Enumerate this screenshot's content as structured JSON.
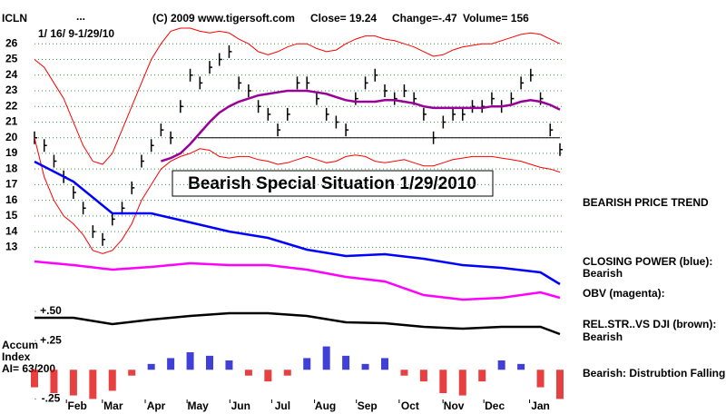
{
  "header": {
    "symbol": "ICLN",
    "dots": "...",
    "copyright": "(C) 2009 www.tigersoft.com",
    "close": "Close= 19.24",
    "change": "Change=-.47",
    "volume": "Volume= 156",
    "date_range": "1/ 16/ 9-1/29/10"
  },
  "chart_data": [
    {
      "type": "line",
      "annotation": "Bearish Special Situation 1/29/2010",
      "trend_label": "BEARISH PRICE TREND",
      "xlim": [
        0,
        54
      ],
      "xticks": [
        {
          "value": 4.4,
          "label": "Feb"
        },
        {
          "value": 8.1,
          "label": "Mar"
        },
        {
          "value": 12.5,
          "label": "Apr"
        },
        {
          "value": 16.8,
          "label": "May"
        },
        {
          "value": 21.2,
          "label": "Jun"
        },
        {
          "value": 25.5,
          "label": "Jul"
        },
        {
          "value": 29.9,
          "label": "Aug"
        },
        {
          "value": 34.2,
          "label": "Sep"
        },
        {
          "value": 38.6,
          "label": "Oct"
        },
        {
          "value": 43.1,
          "label": "Nov"
        },
        {
          "value": 47.3,
          "label": "Dec"
        },
        {
          "value": 52,
          "label": "Jan"
        }
      ],
      "ylim": [
        12.5,
        27
      ],
      "yticks": [
        13,
        14,
        15,
        16,
        17,
        18,
        19,
        20,
        21,
        22,
        23,
        24,
        25,
        26
      ],
      "grid": true,
      "support": 20,
      "series": [
        {
          "role": "price",
          "color": "#000000",
          "values": [
            20,
            19.5,
            18.5,
            17.5,
            16.5,
            15.5,
            14,
            13.5,
            14.8,
            15.5,
            16.8,
            18.5,
            19.5,
            20.5,
            20,
            22,
            24,
            23.5,
            24.5,
            25,
            25.5,
            23.5,
            23,
            22,
            21.5,
            20.5,
            21.5,
            23.5,
            23.5,
            22.5,
            21.5,
            21,
            20.5,
            22.5,
            23.5,
            24,
            23,
            22.5,
            23,
            22.5,
            21.5,
            20,
            21,
            21.5,
            21.5,
            22,
            22,
            22.5,
            22,
            22.5,
            23.5,
            24,
            22.5,
            20.5,
            19.24
          ]
        },
        {
          "role": "average",
          "color": "#990099",
          "values": [
            null,
            null,
            null,
            null,
            null,
            null,
            null,
            null,
            null,
            null,
            null,
            null,
            null,
            18.5,
            18.7,
            19,
            19.6,
            20.3,
            21,
            21.6,
            22,
            22.3,
            22.5,
            22.7,
            22.8,
            22.9,
            23,
            23,
            23,
            22.9,
            22.8,
            22.6,
            22.4,
            22.3,
            22.3,
            22.3,
            22.4,
            22.4,
            22.3,
            22.2,
            22,
            21.9,
            21.9,
            21.9,
            21.9,
            21.9,
            21.9,
            22,
            22,
            22.1,
            22.3,
            22.4,
            22.3,
            22.1,
            21.8
          ]
        },
        {
          "role": "band",
          "color": "#ff0000",
          "values": [
            25,
            24.5,
            23.5,
            22.5,
            21,
            19.5,
            18.5,
            18.3,
            19,
            20.5,
            22,
            23.5,
            25,
            26,
            26.8,
            27,
            27,
            26.8,
            26.7,
            26.8,
            26.7,
            26.3,
            26,
            25.5,
            25.3,
            25.5,
            25.8,
            26,
            26,
            25.7,
            25.5,
            25.6,
            26,
            26.3,
            26.5,
            26.5,
            26.3,
            26.2,
            26,
            25.8,
            25.5,
            25.2,
            25.3,
            25.6,
            25.8,
            25.9,
            26,
            26,
            26.2,
            26.4,
            26.6,
            26.7,
            26.6,
            26.3,
            26
          ]
        },
        {
          "role": "band",
          "color": "#ff0000",
          "values": [
            20,
            17.5,
            16,
            15,
            14.5,
            13.8,
            12.8,
            12.6,
            12.8,
            13.5,
            14.5,
            16,
            17,
            18,
            18.5,
            18.8,
            19,
            19.3,
            19.2,
            18.8,
            18.7,
            18.8,
            18.8,
            18.6,
            18.5,
            18.3,
            18.4,
            18.6,
            18.8,
            18.6,
            18.4,
            18.5,
            18.8,
            18.9,
            18.8,
            18.5,
            18.4,
            18.5,
            18.6,
            18.4,
            18.2,
            18.2,
            18.4,
            18.6,
            18.7,
            18.8,
            18.8,
            18.8,
            18.7,
            18.6,
            18.5,
            18.3,
            18.1,
            18,
            17.8
          ]
        }
      ]
    },
    {
      "type": "line",
      "xlim": [
        0,
        54
      ],
      "ylim": [
        0,
        100
      ],
      "x": [
        0,
        4,
        8,
        12,
        16,
        20,
        24,
        28,
        32,
        36,
        40,
        44,
        48,
        52,
        54
      ],
      "series": [
        {
          "name": "CLOSING POWER (blue):",
          "status": "Bearish",
          "color": "#0000ff",
          "values": [
            96,
            85,
            67.5,
            67.5,
            62.5,
            57.5,
            54,
            47.5,
            44,
            45,
            42.5,
            39,
            37.5,
            35,
            28.5
          ]
        },
        {
          "name": "OBV (magenta):",
          "color": "#ff00ff",
          "values": [
            41,
            39,
            36.5,
            38,
            40,
            39,
            39,
            36.5,
            32.5,
            30,
            22.5,
            20,
            21,
            24,
            21
          ]
        },
        {
          "name": "REL.STR..VS DJI (brown):",
          "status": "Bearish",
          "color": "#000000",
          "values": [
            10,
            10,
            6.5,
            9,
            11,
            12.5,
            12.5,
            11,
            7.5,
            7,
            5,
            4,
            5,
            5,
            1
          ]
        }
      ]
    },
    {
      "type": "bar",
      "labels": [
        "Accum",
        "Index",
        "AI= 63/200"
      ],
      "status": "Bearish: Distrubtion Falling.",
      "xlim": [
        0,
        54
      ],
      "ylim": [
        -0.27,
        0.5
      ],
      "yticks": [
        {
          "value": 0.5,
          "label": "+.50"
        },
        {
          "value": 0.25,
          "label": "+.25"
        },
        {
          "value": -0.25,
          "label": "-.25"
        }
      ],
      "positive_color": "#0000cc",
      "negative_color": "#dd0000",
      "x": [
        0,
        2,
        4,
        6,
        8,
        10,
        12,
        14,
        16,
        18,
        20,
        22,
        24,
        26,
        28,
        30,
        32,
        34,
        36,
        38,
        40,
        42,
        44,
        46,
        48,
        50,
        52,
        54
      ],
      "values": [
        -0.15,
        -0.2,
        -0.22,
        -0.25,
        -0.18,
        -0.05,
        0.05,
        0.1,
        0.15,
        0.12,
        0.08,
        -0.05,
        -0.1,
        -0.05,
        0.1,
        0.2,
        0.12,
        0.05,
        0.1,
        -0.05,
        -0.1,
        -0.2,
        -0.22,
        -0.1,
        0.08,
        0.05,
        -0.15,
        -0.25
      ]
    }
  ]
}
